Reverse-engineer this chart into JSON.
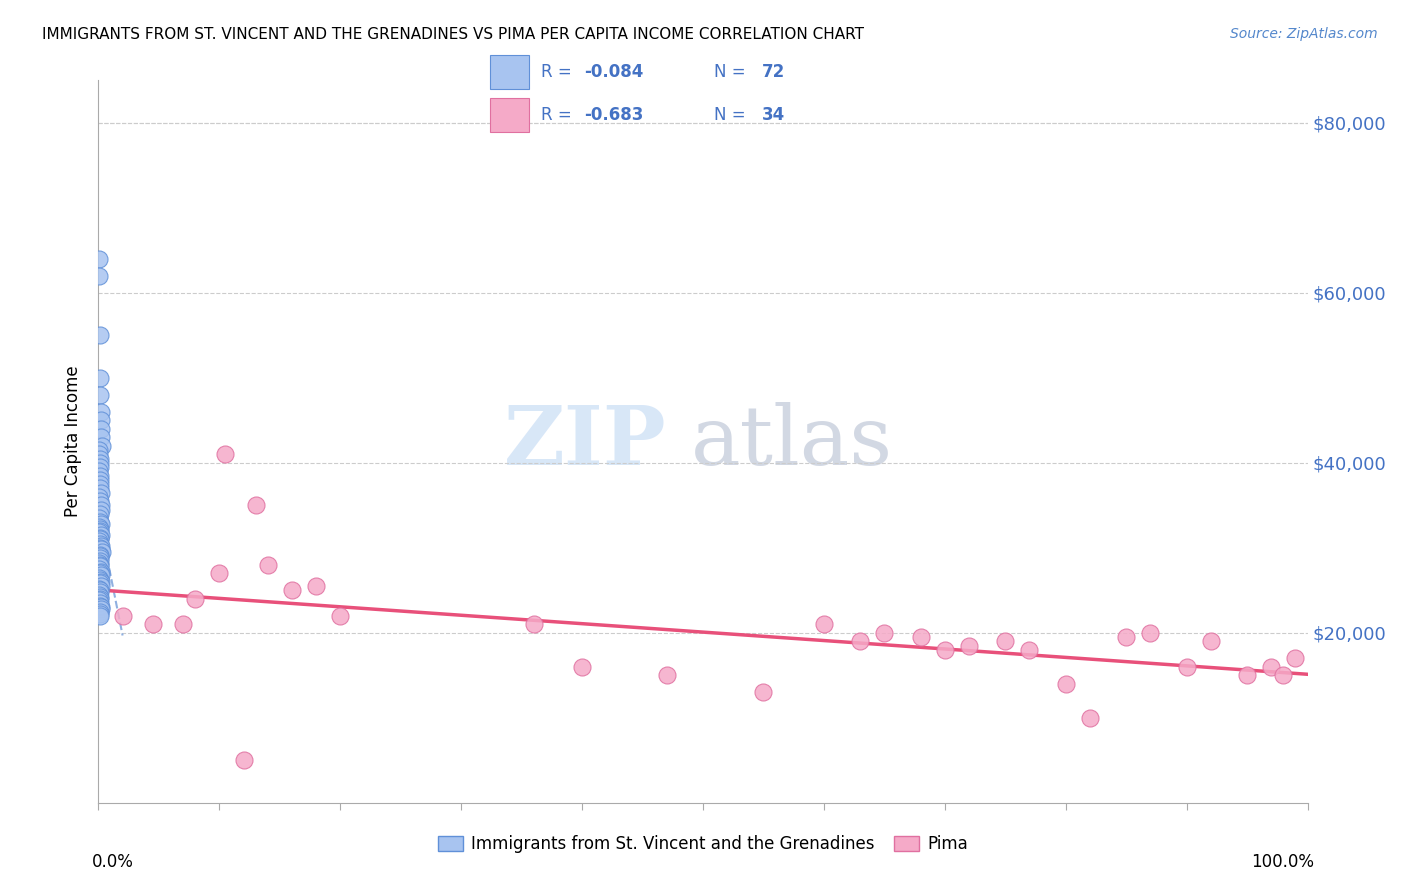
{
  "title": "IMMIGRANTS FROM ST. VINCENT AND THE GRENADINES VS PIMA PER CAPITA INCOME CORRELATION CHART",
  "source": "Source: ZipAtlas.com",
  "ylabel": "Per Capita Income",
  "yticks": [
    0,
    20000,
    40000,
    60000,
    80000
  ],
  "xlim": [
    0.0,
    100.0
  ],
  "ylim": [
    0,
    85000
  ],
  "blue_color": "#a8c4f0",
  "pink_color": "#f5aac8",
  "blue_edge": "#6090d8",
  "pink_edge": "#e070a0",
  "trend_blue_color": "#90b0e0",
  "trend_pink_color": "#e8507a",
  "legend_label_blue": "Immigrants from St. Vincent and the Grenadines",
  "legend_label_pink": "Pima",
  "watermark_zip": "ZIP",
  "watermark_atlas": "atlas",
  "blue_x": [
    0.05,
    0.08,
    0.1,
    0.12,
    0.15,
    0.18,
    0.2,
    0.22,
    0.25,
    0.3,
    0.05,
    0.08,
    0.1,
    0.12,
    0.15,
    0.06,
    0.09,
    0.11,
    0.13,
    0.17,
    0.21,
    0.07,
    0.14,
    0.19,
    0.25,
    0.1,
    0.08,
    0.16,
    0.23,
    0.05,
    0.12,
    0.09,
    0.06,
    0.18,
    0.14,
    0.11,
    0.07,
    0.13,
    0.2,
    0.16,
    0.22,
    0.28,
    0.15,
    0.09,
    0.12,
    0.17,
    0.06,
    0.1,
    0.14,
    0.08,
    0.19,
    0.11,
    0.24,
    0.07,
    0.13,
    0.18,
    0.16,
    0.21,
    0.05,
    0.09,
    0.12,
    0.06,
    0.14,
    0.1,
    0.08,
    0.11,
    0.15,
    0.19,
    0.22,
    0.17,
    0.13,
    0.09
  ],
  "blue_y": [
    64000,
    62000,
    55000,
    50000,
    48000,
    46000,
    45000,
    44000,
    43000,
    42000,
    41500,
    41000,
    40500,
    40000,
    39500,
    39000,
    38500,
    38000,
    37500,
    37000,
    36500,
    36000,
    35500,
    35000,
    34500,
    34000,
    33500,
    33000,
    32800,
    32500,
    32200,
    32000,
    31800,
    31500,
    31200,
    31000,
    30800,
    30500,
    30200,
    30000,
    29800,
    29500,
    29200,
    29000,
    28800,
    28500,
    28200,
    28000,
    27800,
    27500,
    27200,
    27000,
    26800,
    26500,
    26200,
    26000,
    25800,
    25500,
    25200,
    25000,
    24800,
    24500,
    24200,
    24000,
    23800,
    23500,
    23200,
    23000,
    22800,
    22500,
    22200,
    22000
  ],
  "pink_x": [
    2.0,
    4.5,
    7.0,
    8.0,
    10.0,
    12.0,
    14.0,
    16.0,
    18.0,
    20.0,
    36.0,
    40.0,
    47.0,
    55.0,
    60.0,
    63.0,
    65.0,
    68.0,
    70.0,
    72.0,
    75.0,
    77.0,
    80.0,
    82.0,
    85.0,
    87.0,
    90.0,
    92.0,
    95.0,
    97.0,
    98.0,
    99.0,
    10.5,
    13.0
  ],
  "pink_y": [
    22000,
    21000,
    21000,
    24000,
    27000,
    5000,
    28000,
    25000,
    25500,
    22000,
    21000,
    16000,
    15000,
    13000,
    21000,
    19000,
    20000,
    19500,
    18000,
    18500,
    19000,
    18000,
    14000,
    10000,
    19500,
    20000,
    16000,
    19000,
    15000,
    16000,
    15000,
    17000,
    41000,
    35000
  ]
}
